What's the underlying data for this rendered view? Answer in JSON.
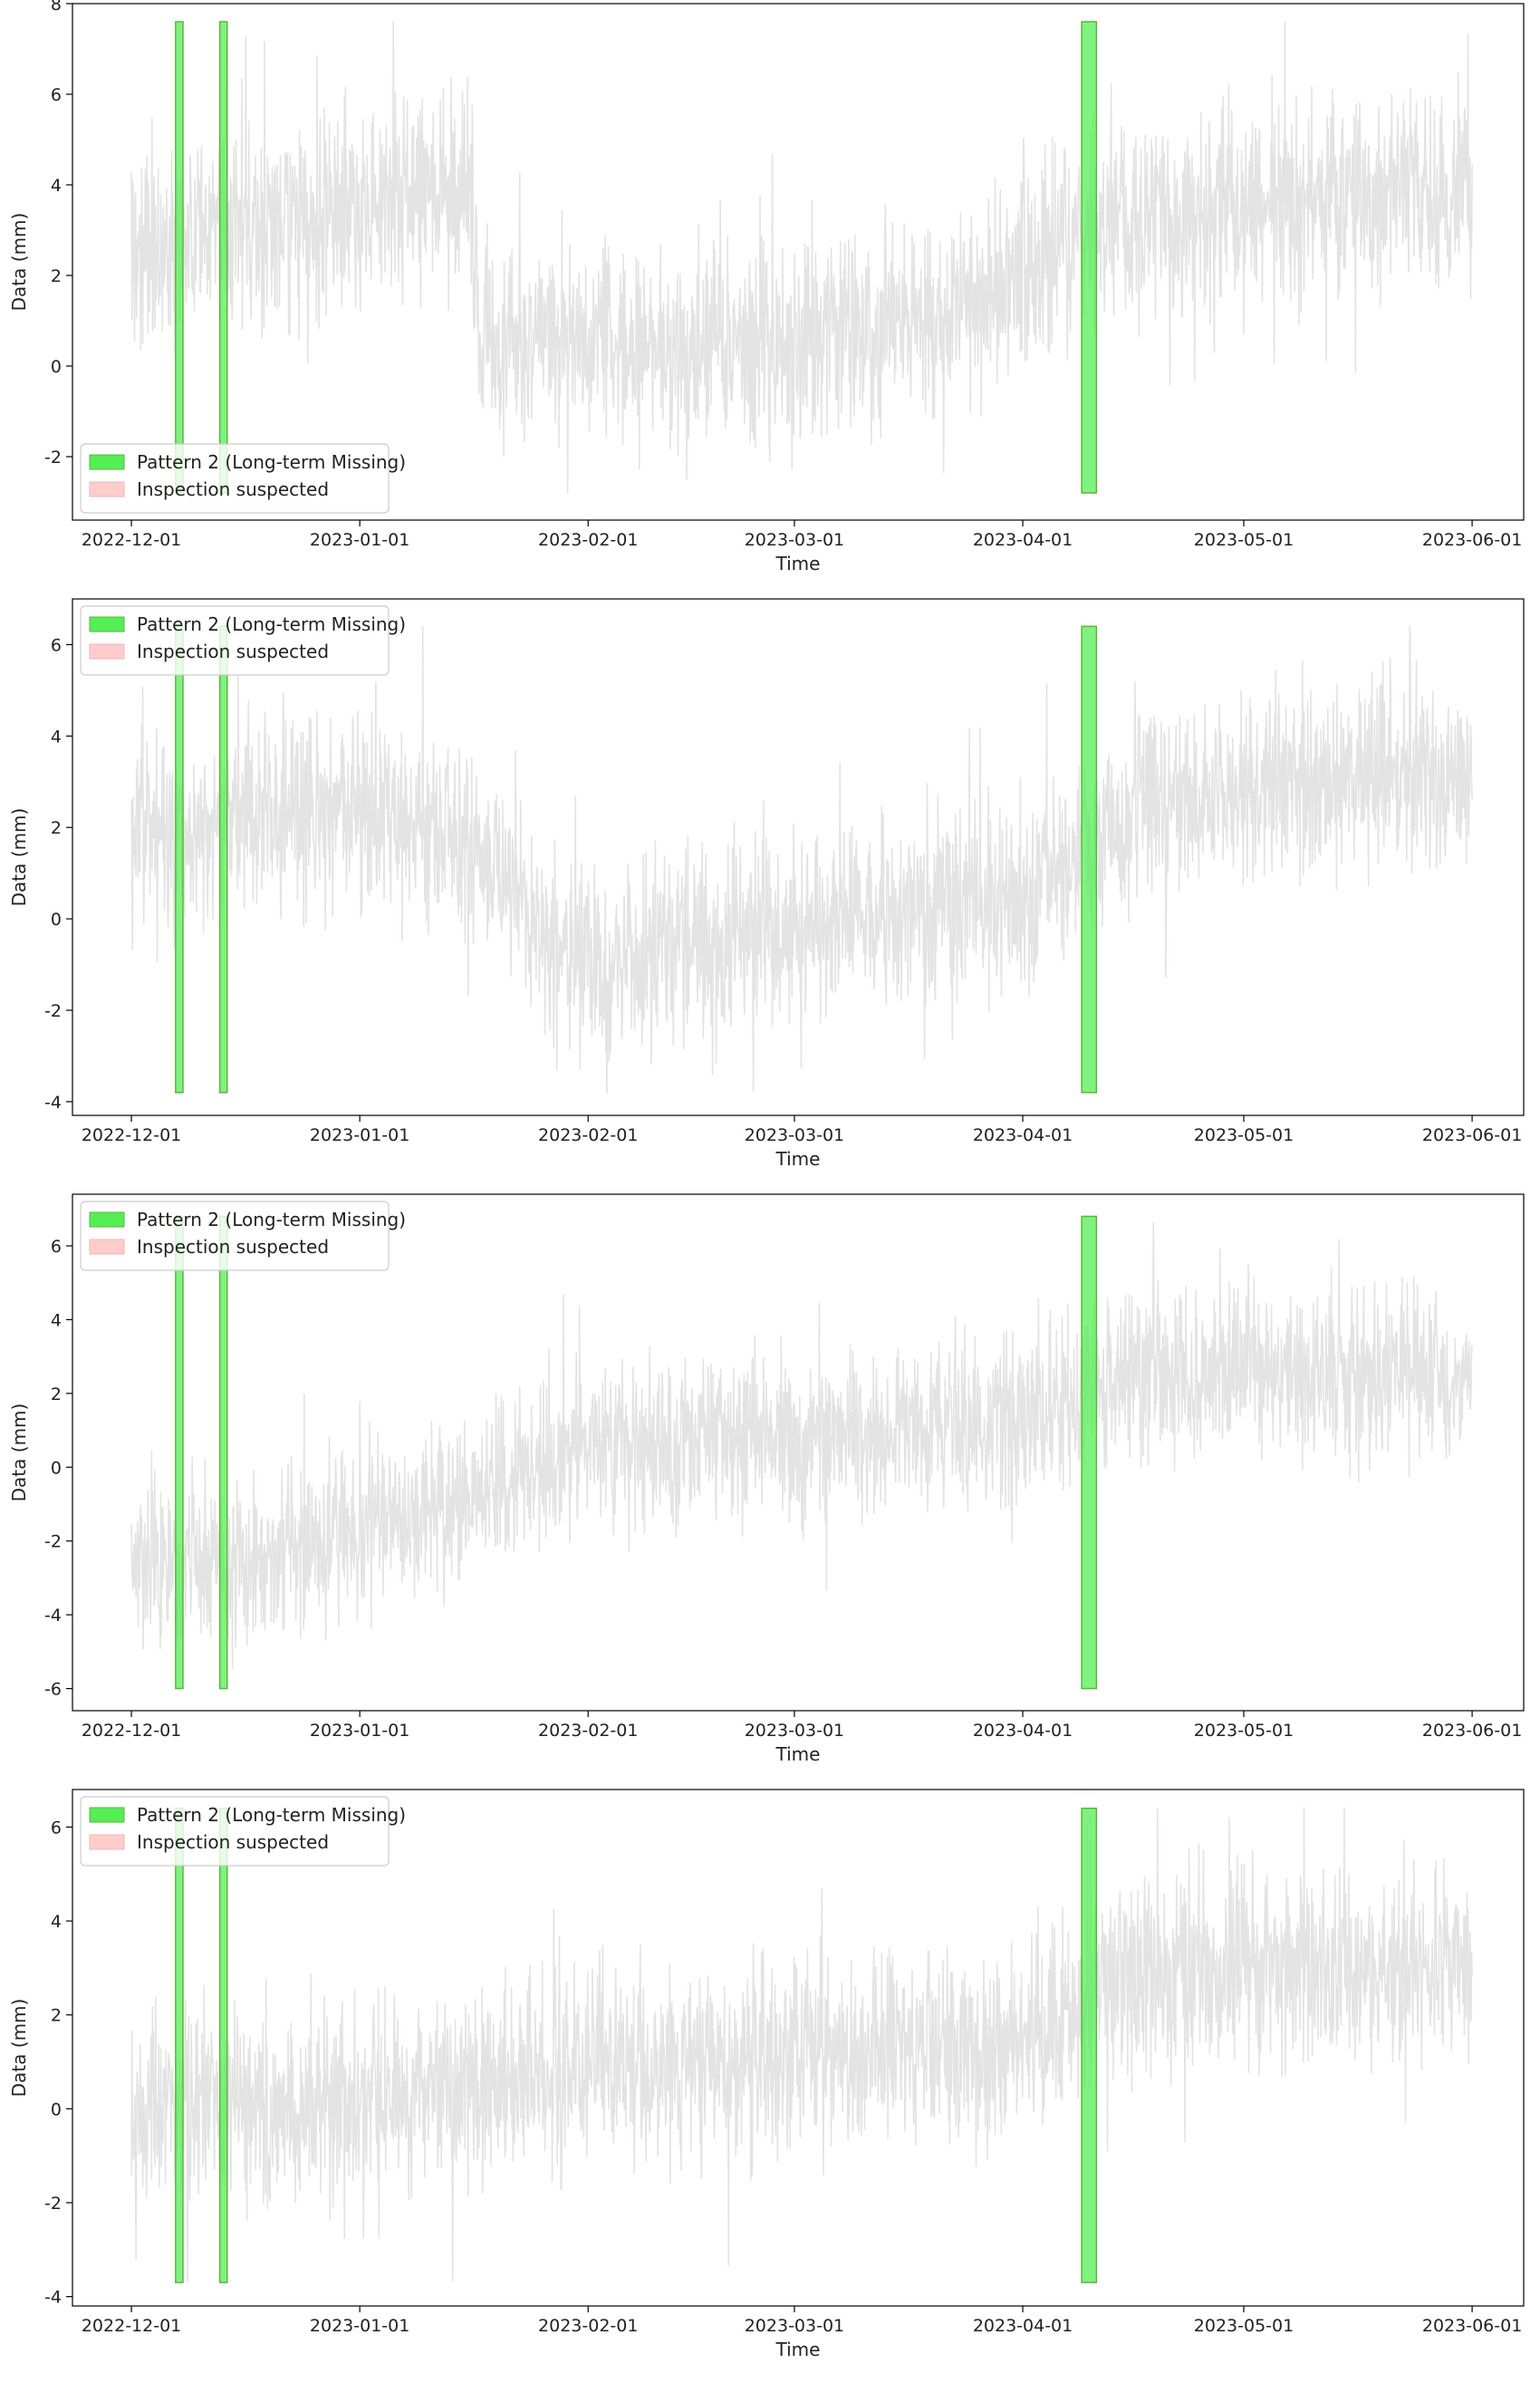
{
  "chart_data": [
    {
      "type": "line",
      "xlabel": "Time",
      "ylabel": "Data (mm)",
      "xlim": [
        "2022-11-23",
        "2023-06-08"
      ],
      "ylim": [
        -3.4,
        8.0
      ],
      "x_ticks": [
        "2022-12-01",
        "2023-01-01",
        "2023-02-01",
        "2023-03-01",
        "2023-04-01",
        "2023-05-01",
        "2023-06-01"
      ],
      "y_ticks": [
        -2,
        0,
        2,
        4,
        6,
        8
      ],
      "x_range": [
        "2022-12-01",
        "2023-06-01"
      ],
      "series": [
        {
          "color": "#e3e3e3",
          "trend": [
            {
              "date": "2022-12-01",
              "mean": 2.6
            },
            {
              "date": "2022-12-20",
              "mean": 3.0
            },
            {
              "date": "2023-01-10",
              "mean": 3.9
            },
            {
              "date": "2023-01-16",
              "mean": 4.0
            },
            {
              "date": "2023-01-17",
              "mean": 0.6
            },
            {
              "date": "2023-02-20",
              "mean": 0.4
            },
            {
              "date": "2023-03-25",
              "mean": 1.3
            },
            {
              "date": "2023-04-10",
              "mean": 2.9
            },
            {
              "date": "2023-05-01",
              "mean": 3.6
            },
            {
              "date": "2023-06-01",
              "mean": 3.9
            }
          ],
          "spread": 1.6,
          "range": [
            -2.8,
            7.6
          ]
        }
      ],
      "spans": [
        {
          "start": "2022-12-07",
          "end": "2022-12-08",
          "ymin": -2.8,
          "ymax": 7.6,
          "label": "Pattern 2 (Long-term Missing)"
        },
        {
          "start": "2022-12-13",
          "end": "2022-12-14",
          "ymin": -2.8,
          "ymax": 7.6,
          "label": "Pattern 2 (Long-term Missing)"
        },
        {
          "start": "2023-04-09",
          "end": "2023-04-11",
          "ymin": -2.8,
          "ymax": 7.6,
          "label": "Pattern 2 (Long-term Missing)"
        }
      ],
      "legend": {
        "position": "lower-left",
        "entries": [
          {
            "label": "Pattern 2 (Long-term Missing)",
            "color": "#55ee55"
          },
          {
            "label": "Inspection suspected",
            "color": "#ffcccc"
          }
        ]
      }
    },
    {
      "type": "line",
      "xlabel": "Time",
      "ylabel": "Data (mm)",
      "xlim": [
        "2022-11-23",
        "2023-06-08"
      ],
      "ylim": [
        -4.3,
        7.0
      ],
      "x_ticks": [
        "2022-12-01",
        "2023-01-01",
        "2023-02-01",
        "2023-03-01",
        "2023-04-01",
        "2023-05-01",
        "2023-06-01"
      ],
      "y_ticks": [
        -4,
        -2,
        0,
        2,
        4,
        6
      ],
      "x_range": [
        "2022-12-01",
        "2023-06-01"
      ],
      "series": [
        {
          "color": "#e3e3e3",
          "trend": [
            {
              "date": "2022-12-01",
              "mean": 2.0
            },
            {
              "date": "2023-01-01",
              "mean": 2.4
            },
            {
              "date": "2023-01-15",
              "mean": 1.8
            },
            {
              "date": "2023-02-01",
              "mean": -1.1
            },
            {
              "date": "2023-03-01",
              "mean": -0.1
            },
            {
              "date": "2023-04-01",
              "mean": 0.5
            },
            {
              "date": "2023-04-15",
              "mean": 2.4
            },
            {
              "date": "2023-05-10",
              "mean": 3.0
            },
            {
              "date": "2023-06-01",
              "mean": 3.2
            }
          ],
          "spread": 1.5,
          "range": [
            -3.8,
            6.4
          ]
        }
      ],
      "spans": [
        {
          "start": "2022-12-07",
          "end": "2022-12-08",
          "ymin": -3.8,
          "ymax": 6.4,
          "label": "Pattern 2 (Long-term Missing)"
        },
        {
          "start": "2022-12-13",
          "end": "2022-12-14",
          "ymin": -3.8,
          "ymax": 6.4,
          "label": "Pattern 2 (Long-term Missing)"
        },
        {
          "start": "2023-04-09",
          "end": "2023-04-11",
          "ymin": -3.8,
          "ymax": 6.4,
          "label": "Pattern 2 (Long-term Missing)"
        }
      ],
      "legend": {
        "position": "upper-left",
        "entries": [
          {
            "label": "Pattern 2 (Long-term Missing)",
            "color": "#55ee55"
          },
          {
            "label": "Inspection suspected",
            "color": "#ffcccc"
          }
        ]
      }
    },
    {
      "type": "line",
      "xlabel": "Time",
      "ylabel": "Data (mm)",
      "xlim": [
        "2022-11-23",
        "2023-06-08"
      ],
      "ylim": [
        -6.6,
        7.4
      ],
      "x_ticks": [
        "2022-12-01",
        "2023-01-01",
        "2023-02-01",
        "2023-03-01",
        "2023-04-01",
        "2023-05-01",
        "2023-06-01"
      ],
      "y_ticks": [
        -6,
        -4,
        -2,
        0,
        2,
        4,
        6
      ],
      "x_range": [
        "2022-12-01",
        "2023-06-01"
      ],
      "series": [
        {
          "color": "#e3e3e3",
          "trend": [
            {
              "date": "2022-12-01",
              "mean": -2.8
            },
            {
              "date": "2022-12-20",
              "mean": -2.4
            },
            {
              "date": "2023-01-16",
              "mean": -0.8
            },
            {
              "date": "2023-02-01",
              "mean": 0.6
            },
            {
              "date": "2023-03-01",
              "mean": 0.8
            },
            {
              "date": "2023-04-01",
              "mean": 1.2
            },
            {
              "date": "2023-04-15",
              "mean": 2.6
            },
            {
              "date": "2023-05-10",
              "mean": 2.6
            },
            {
              "date": "2023-06-01",
              "mean": 2.4
            }
          ],
          "spread": 1.6,
          "range": [
            -6.0,
            6.8
          ]
        }
      ],
      "spans": [
        {
          "start": "2022-12-07",
          "end": "2022-12-08",
          "ymin": -6.0,
          "ymax": 6.8,
          "label": "Pattern 2 (Long-term Missing)"
        },
        {
          "start": "2022-12-13",
          "end": "2022-12-14",
          "ymin": -6.0,
          "ymax": 6.8,
          "label": "Pattern 2 (Long-term Missing)"
        },
        {
          "start": "2023-04-09",
          "end": "2023-04-11",
          "ymin": -6.0,
          "ymax": 6.8,
          "label": "Pattern 2 (Long-term Missing)"
        }
      ],
      "legend": {
        "position": "upper-left",
        "entries": [
          {
            "label": "Pattern 2 (Long-term Missing)",
            "color": "#55ee55"
          },
          {
            "label": "Inspection suspected",
            "color": "#ffcccc"
          }
        ]
      }
    },
    {
      "type": "line",
      "xlabel": "Time",
      "ylabel": "Data (mm)",
      "xlim": [
        "2022-11-23",
        "2023-06-08"
      ],
      "ylim": [
        -4.2,
        6.8
      ],
      "x_ticks": [
        "2022-12-01",
        "2023-01-01",
        "2023-02-01",
        "2023-03-01",
        "2023-04-01",
        "2023-05-01",
        "2023-06-01"
      ],
      "y_ticks": [
        -4,
        -2,
        0,
        2,
        4,
        6
      ],
      "x_range": [
        "2022-12-01",
        "2023-06-01"
      ],
      "series": [
        {
          "color": "#e3e3e3",
          "trend": [
            {
              "date": "2022-12-01",
              "mean": 0.0
            },
            {
              "date": "2023-01-01",
              "mean": 0.1
            },
            {
              "date": "2023-02-01",
              "mean": 0.9
            },
            {
              "date": "2023-03-01",
              "mean": 1.1
            },
            {
              "date": "2023-04-01",
              "mean": 1.4
            },
            {
              "date": "2023-04-15",
              "mean": 2.9
            },
            {
              "date": "2023-05-10",
              "mean": 3.0
            },
            {
              "date": "2023-06-01",
              "mean": 3.0
            }
          ],
          "spread": 1.5,
          "range": [
            -3.7,
            6.4
          ]
        }
      ],
      "spans": [
        {
          "start": "2022-12-07",
          "end": "2022-12-08",
          "ymin": -3.7,
          "ymax": 6.4,
          "label": "Pattern 2 (Long-term Missing)"
        },
        {
          "start": "2022-12-13",
          "end": "2022-12-14",
          "ymin": -3.7,
          "ymax": 6.4,
          "label": "Pattern 2 (Long-term Missing)"
        },
        {
          "start": "2023-04-09",
          "end": "2023-04-11",
          "ymin": -3.7,
          "ymax": 6.4,
          "label": "Pattern 2 (Long-term Missing)"
        }
      ],
      "legend": {
        "position": "upper-left",
        "entries": [
          {
            "label": "Pattern 2 (Long-term Missing)",
            "color": "#55ee55"
          },
          {
            "label": "Inspection suspected",
            "color": "#ffcccc"
          }
        ]
      }
    }
  ]
}
